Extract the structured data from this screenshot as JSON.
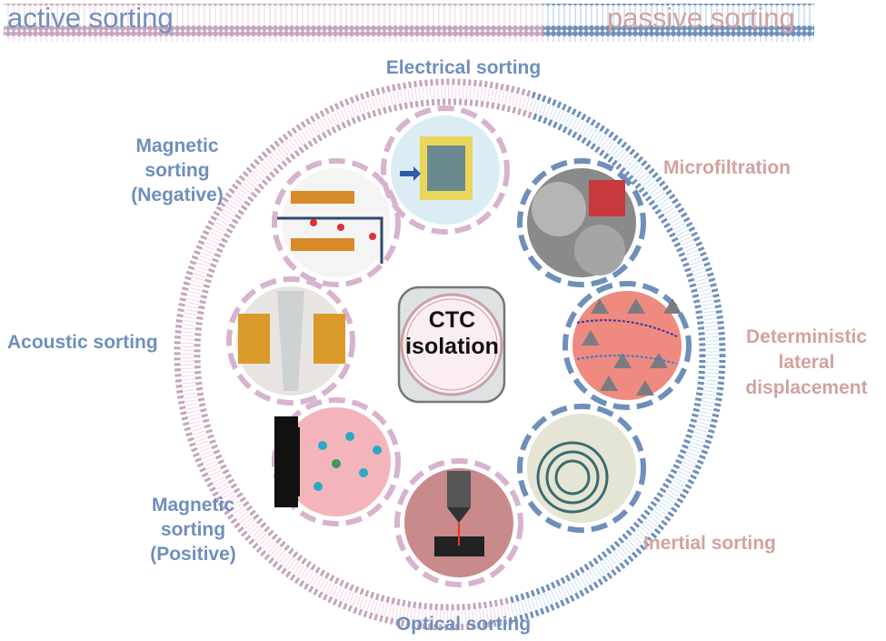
{
  "banner": {
    "active_label": "active sorting",
    "passive_label": "passive sorting"
  },
  "center": {
    "title_line1": "CTC",
    "title_line2": "isolation"
  },
  "methods": [
    {
      "label": "Electrical sorting",
      "category": "active"
    },
    {
      "label": "Microfiltration",
      "category": "passive"
    },
    {
      "label": "Deterministic lateral displacement",
      "category": "passive"
    },
    {
      "label": "Inertial sorting",
      "category": "passive"
    },
    {
      "label": "Optical sorting",
      "category": "active"
    },
    {
      "label": "Magnetic sorting (Positive)",
      "category": "active"
    },
    {
      "label": "Acoustic sorting",
      "category": "active"
    },
    {
      "label": "Magnetic sorting (Negative)",
      "category": "active"
    }
  ],
  "colors": {
    "active": "#6f8fbb",
    "passive": "#d2a2a0",
    "active_membrane": "#c4a4bd",
    "passive_membrane": "#6f8fbb"
  }
}
